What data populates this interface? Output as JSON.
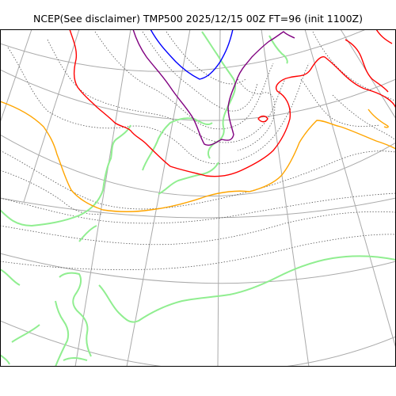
{
  "title": "NCEP(See disclaimer) TMP500 2025/12/15 00Z FT=96 (init 1100Z)",
  "map": {
    "variable": "TMP500",
    "projection": "polar-stereographic",
    "colors": {
      "graticule": "#aaaaaa",
      "coastline": "#90ee90",
      "isotherm_dotted": "#555555",
      "isotherm_blue": "#0000ff",
      "isotherm_purple": "#800080",
      "isotherm_red": "#ff0000",
      "isotherm_orange": "#ffa500",
      "frame": "#000000"
    }
  }
}
